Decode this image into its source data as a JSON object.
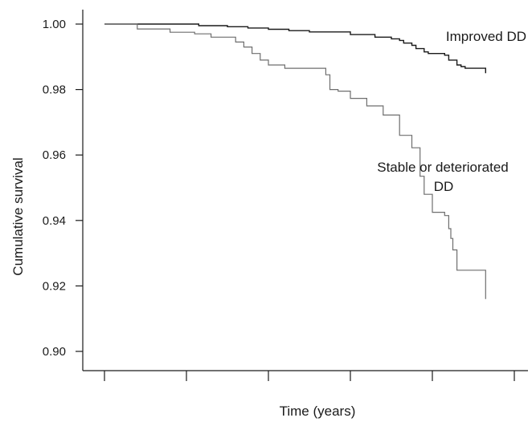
{
  "chart_data": {
    "type": "line",
    "step": true,
    "title": "",
    "xlabel": "Time (years)",
    "ylabel": "Cumulative survival",
    "xlim": [
      0,
      10.5
    ],
    "ylim": [
      0.9,
      1.005
    ],
    "x_ticks": [
      0,
      2,
      4,
      6,
      8,
      10
    ],
    "x_tick_labels_shown": false,
    "y_ticks": [
      0.9,
      0.92,
      0.94,
      0.96,
      0.98,
      1.0
    ],
    "y_tick_labels": [
      "0.90",
      "0.92",
      "0.94",
      "0.96",
      "0.98",
      "1.00"
    ],
    "grid": false,
    "legend": "none",
    "series": [
      {
        "name": "Improved DD",
        "color": "#1a1a1a",
        "points": [
          [
            0,
            1.0
          ],
          [
            2.0,
            1.0
          ],
          [
            2.3,
            0.9995
          ],
          [
            3.0,
            0.9992
          ],
          [
            3.5,
            0.9988
          ],
          [
            4.0,
            0.9984
          ],
          [
            4.5,
            0.998
          ],
          [
            5.0,
            0.9976
          ],
          [
            6.0,
            0.9968
          ],
          [
            6.6,
            0.996
          ],
          [
            7.0,
            0.9955
          ],
          [
            7.2,
            0.995
          ],
          [
            7.3,
            0.9942
          ],
          [
            7.5,
            0.9935
          ],
          [
            7.6,
            0.9925
          ],
          [
            7.8,
            0.9915
          ],
          [
            7.9,
            0.991
          ],
          [
            8.3,
            0.9905
          ],
          [
            8.4,
            0.989
          ],
          [
            8.6,
            0.9875
          ],
          [
            8.7,
            0.987
          ],
          [
            8.8,
            0.9865
          ],
          [
            9.3,
            0.9865
          ],
          [
            9.3,
            0.985
          ]
        ]
      },
      {
        "name": "Stable or deteriorated DD",
        "color": "#6e6e6e",
        "points": [
          [
            0,
            1.0
          ],
          [
            0.8,
            1.0
          ],
          [
            0.8,
            0.9985
          ],
          [
            1.6,
            0.9985
          ],
          [
            1.6,
            0.9975
          ],
          [
            2.2,
            0.997
          ],
          [
            2.6,
            0.996
          ],
          [
            3.2,
            0.9945
          ],
          [
            3.4,
            0.993
          ],
          [
            3.6,
            0.991
          ],
          [
            3.8,
            0.989
          ],
          [
            4.0,
            0.9875
          ],
          [
            4.4,
            0.9865
          ],
          [
            5.4,
            0.9845
          ],
          [
            5.5,
            0.98
          ],
          [
            5.7,
            0.9795
          ],
          [
            6.0,
            0.9773
          ],
          [
            6.4,
            0.975
          ],
          [
            6.8,
            0.9722
          ],
          [
            7.2,
            0.966
          ],
          [
            7.5,
            0.9622
          ],
          [
            7.7,
            0.9535
          ],
          [
            7.8,
            0.948
          ],
          [
            8.0,
            0.9425
          ],
          [
            8.3,
            0.9415
          ],
          [
            8.4,
            0.9375
          ],
          [
            8.45,
            0.9345
          ],
          [
            8.5,
            0.931
          ],
          [
            8.6,
            0.9248
          ],
          [
            9.3,
            0.9248
          ],
          [
            9.3,
            0.916
          ]
        ]
      }
    ],
    "annotations": {
      "improved": "Improved DD",
      "stable_line1": "Stable or deteriorated",
      "stable_line2": "DD"
    }
  }
}
